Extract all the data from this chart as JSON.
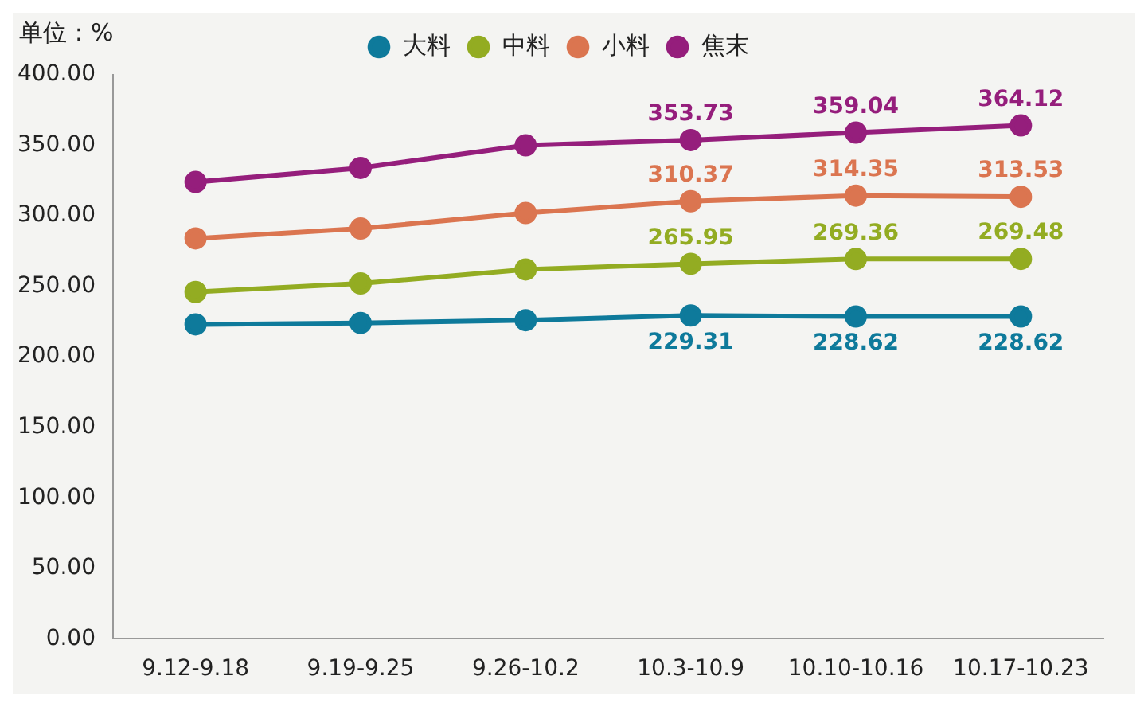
{
  "chart_data": {
    "type": "line",
    "ylabel": "单位：%",
    "categories": [
      "9.12-9.18",
      "9.19-9.25",
      "9.26-10.2",
      "10.3-10.9",
      "10.10-10.16",
      "10.17-10.23"
    ],
    "series": [
      {
        "name": "大料",
        "color": "#0e7a9b",
        "values": [
          223,
          224,
          226,
          229.31,
          228.62,
          228.62
        ],
        "value_labels": [
          null,
          null,
          null,
          "229.31",
          "228.62",
          "228.62"
        ]
      },
      {
        "name": "中料",
        "color": "#93ac22",
        "values": [
          246,
          252,
          262,
          265.95,
          269.36,
          269.48
        ],
        "value_labels": [
          null,
          null,
          null,
          "265.95",
          "269.36",
          "269.48"
        ]
      },
      {
        "name": "小料",
        "color": "#db7550",
        "values": [
          284,
          291,
          302,
          310.37,
          314.35,
          313.53
        ],
        "value_labels": [
          null,
          null,
          null,
          "310.37",
          "314.35",
          "313.53"
        ]
      },
      {
        "name": "焦末",
        "color": "#951e7c",
        "values": [
          324,
          334,
          350,
          353.73,
          359.04,
          364.12
        ],
        "value_labels": [
          null,
          null,
          null,
          "353.73",
          "359.04",
          "364.12"
        ]
      }
    ],
    "ylim": [
      0,
      400
    ],
    "yticks": [
      {
        "value": 0,
        "label": "0.00"
      },
      {
        "value": 50,
        "label": "50.00"
      },
      {
        "value": 100,
        "label": "100.00"
      },
      {
        "value": 150,
        "label": "150.00"
      },
      {
        "value": 200,
        "label": "200.00"
      },
      {
        "value": 250,
        "label": "250.00"
      },
      {
        "value": 300,
        "label": "300.00"
      },
      {
        "value": 350,
        "label": "350.00"
      },
      {
        "value": 400,
        "label": "400.00"
      }
    ],
    "grid": false,
    "legend": "top",
    "marker": "circle",
    "line_style": "solid"
  }
}
